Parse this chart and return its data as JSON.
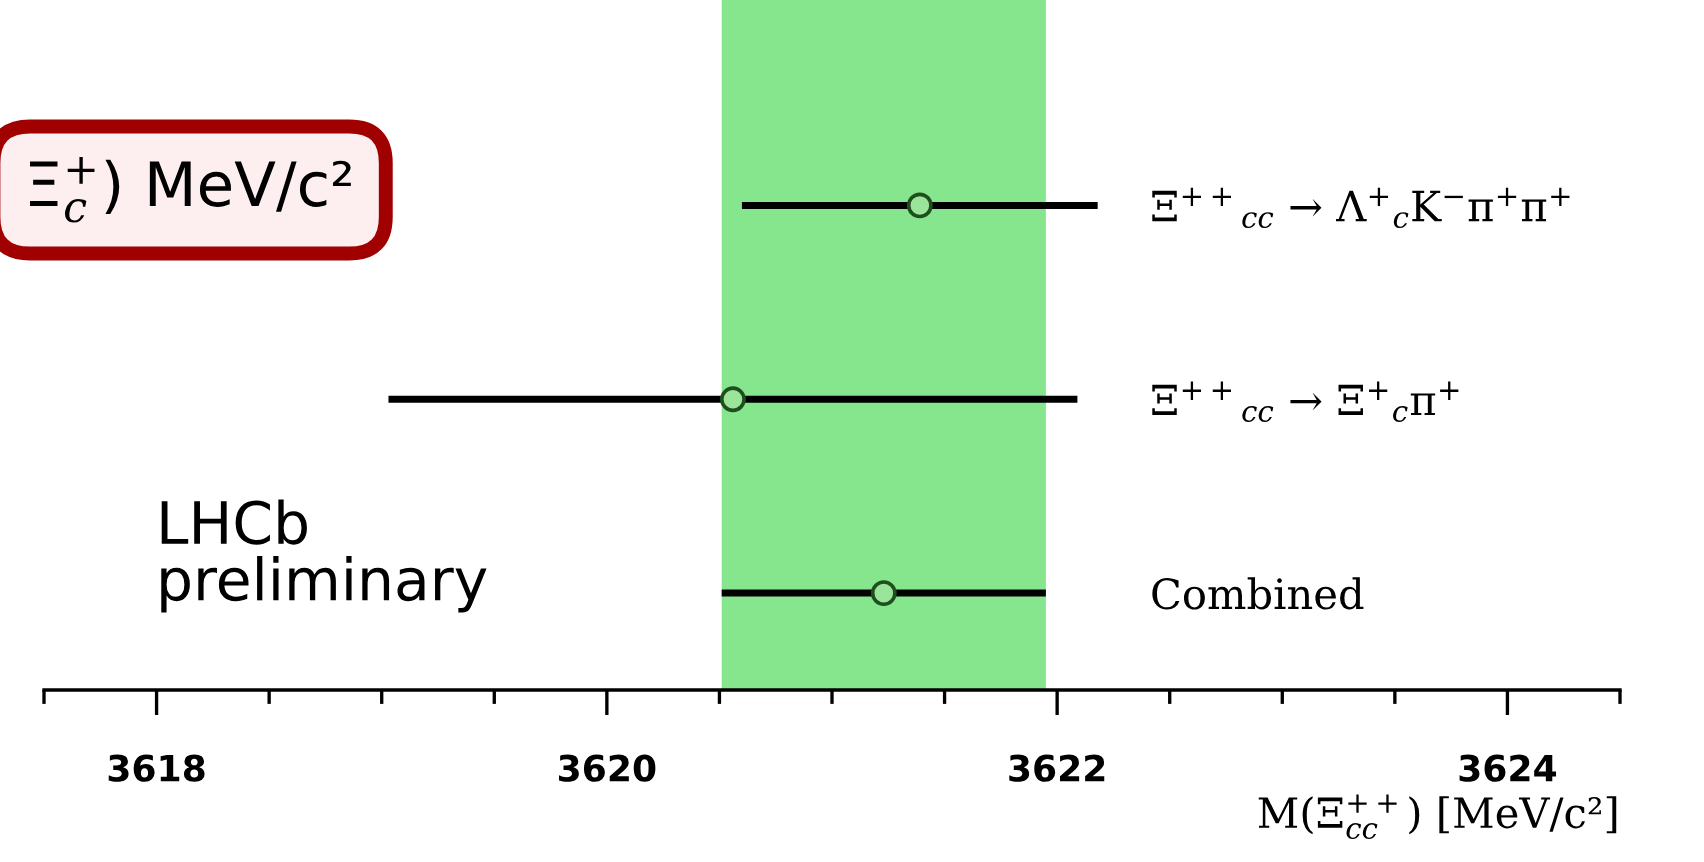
{
  "chart_data": {
    "type": "scatter",
    "orientation": "horizontal",
    "categories": [
      "Ξ$^{++}$$_{cc}$ → Λ$^{+}$$_{c}$K$^{−}$π$^{+}$π$^{+}$",
      "Ξ$^{++}$$_{cc}$ → Ξ$^{+}$$_{c}$π$^{+}$",
      "Combined"
    ],
    "series": [
      {
        "color": "#9be59b",
        "values": [
          3621.39,
          3620.56,
          3621.23
        ],
        "errors": [
          0.79,
          1.53,
          0.72
        ]
      }
    ],
    "marker": "circle",
    "xlabel": "M(Ξ$^{++}$$_{cc}$) [MeV/c²]",
    "xlim": [
      3617.5,
      3624.5
    ],
    "xticks": [
      {
        "value": 3617.5,
        "label": null
      },
      {
        "value": 3618,
        "label": "3618"
      },
      {
        "value": 3618.5,
        "label": null
      },
      {
        "value": 3619,
        "label": null
      },
      {
        "value": 3619.5,
        "label": null
      },
      {
        "value": 3620,
        "label": "3620"
      },
      {
        "value": 3620.5,
        "label": null
      },
      {
        "value": 3621,
        "label": null
      },
      {
        "value": 3621.5,
        "label": null
      },
      {
        "value": 3622,
        "label": "3622"
      },
      {
        "value": 3622.5,
        "label": null
      },
      {
        "value": 3623,
        "label": null
      },
      {
        "value": 3623.5,
        "label": null
      },
      {
        "value": 3624,
        "label": "3624"
      },
      {
        "value": 3624.5,
        "label": null
      }
    ],
    "bands": [
      {
        "axis": "x",
        "from": 3620.51,
        "to": 3621.95,
        "color": "#86e68e"
      }
    ],
    "annotations": [
      "LHCb\npreliminary",
      "Ξ$^{+}$$_{c}$) MeV/c²"
    ],
    "grid": false,
    "legend": false
  }
}
